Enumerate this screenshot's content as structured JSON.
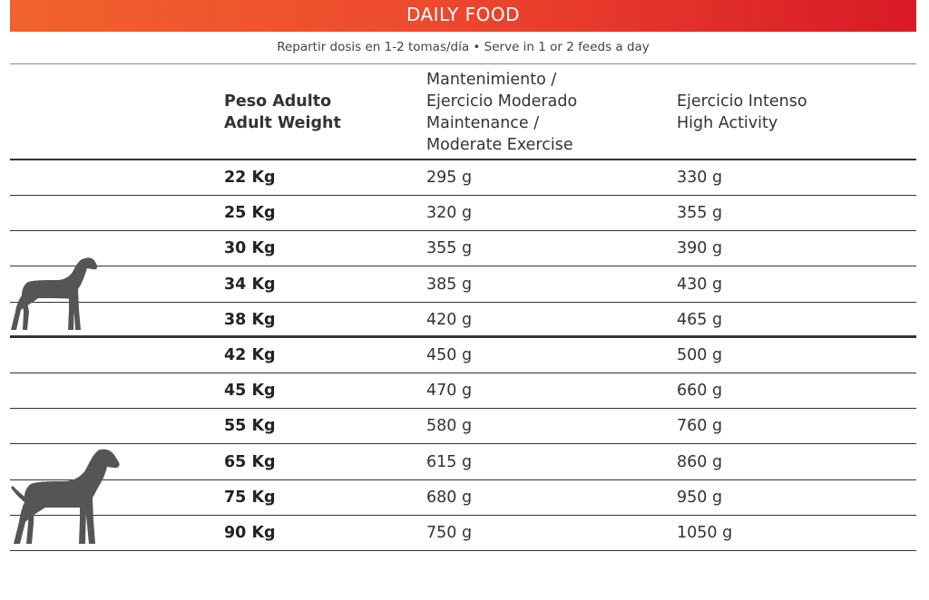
{
  "header": {
    "title": "DAILY FOOD"
  },
  "subtitle": "Repartir dosis en 1-2 tomas/día • Serve in 1 or 2 feeds a day",
  "columns": {
    "weight": [
      "Peso Adulto",
      "Adult Weight"
    ],
    "maintenance": [
      "Mantenimiento /",
      "Ejercicio Moderado",
      "Maintenance /",
      "Moderate Exercise"
    ],
    "intense": [
      "Ejercicio Intenso",
      "High Activity"
    ]
  },
  "rows": [
    {
      "weight": "22 Kg",
      "maintenance": "295 g",
      "intense": "330 g"
    },
    {
      "weight": "25 Kg",
      "maintenance": "320 g",
      "intense": "355 g"
    },
    {
      "weight": "30 Kg",
      "maintenance": "355 g",
      "intense": "390 g"
    },
    {
      "weight": "34 Kg",
      "maintenance": "385 g",
      "intense": "430 g"
    },
    {
      "weight": "38 Kg",
      "maintenance": "420 g",
      "intense": "465 g"
    },
    {
      "weight": "42 Kg",
      "maintenance": "450 g",
      "intense": "500 g"
    },
    {
      "weight": "45 Kg",
      "maintenance": "470 g",
      "intense": "660 g"
    },
    {
      "weight": "55 Kg",
      "maintenance": "580 g",
      "intense": "760 g"
    },
    {
      "weight": "65 Kg",
      "maintenance": "615 g",
      "intense": "860 g"
    },
    {
      "weight": "75 Kg",
      "maintenance": "680 g",
      "intense": "950 g"
    },
    {
      "weight": "90 Kg",
      "maintenance": "750 g",
      "intense": "1050 g"
    }
  ],
  "icons": {
    "group_1": "large-dog-icon",
    "group_2": "giant-dog-icon"
  },
  "colors": {
    "banner_start": "#f0632d",
    "banner_end": "#d81a26",
    "dog": "#555555"
  }
}
